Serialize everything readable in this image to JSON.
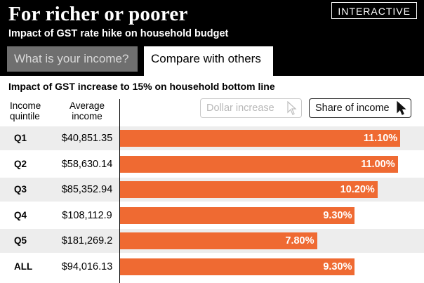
{
  "header": {
    "title": "For richer or poorer",
    "badge": "INTERACTIVE",
    "subtitle": "Impact of GST rate hike on household budget",
    "tabs": [
      {
        "label": "What is your income?"
      },
      {
        "label": "Compare with others"
      }
    ]
  },
  "main": {
    "section_title": "Impact of GST increase to 15% on household bottom line",
    "col_quintile_line1": "Income",
    "col_quintile_line2": "quintile",
    "col_income_line1": "Average",
    "col_income_line2": "income",
    "toggle": {
      "dollar_label": "Dollar increase",
      "share_label": "Share of income"
    }
  },
  "colors": {
    "bar": "#ef6a32",
    "alt_row": "#ededed",
    "header_bg": "#000000"
  },
  "chart_data": {
    "type": "bar",
    "orientation": "horizontal",
    "title": "Impact of GST increase to 15% on household bottom line",
    "categories": [
      "Q1",
      "Q2",
      "Q3",
      "Q4",
      "Q5",
      "ALL"
    ],
    "average_income": [
      "$40,851.35",
      "$58,630.14",
      "$85,352.94",
      "$108,112.9",
      "$181,269.2",
      "$94,016.13"
    ],
    "values": [
      11.1,
      11.0,
      10.2,
      9.3,
      7.8,
      9.3
    ],
    "labels": [
      "11.10%",
      "11.00%",
      "10.20%",
      "9.30%",
      "7.80%",
      "9.30%"
    ],
    "xlim": [
      0,
      11.4
    ],
    "unit": "% of income"
  }
}
